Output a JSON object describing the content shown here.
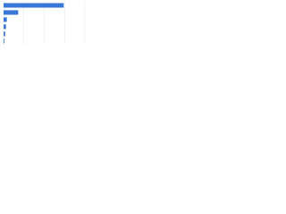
{
  "chart_data": {
    "type": "bar",
    "orientation": "horizontal",
    "categories": [
      null,
      null,
      null,
      null,
      null,
      null
    ],
    "values": [
      74,
      18,
      4,
      3,
      2,
      1
    ],
    "color": "#3a78d8",
    "xlim": [
      0,
      100
    ],
    "xticks": [
      0,
      25,
      50,
      75,
      100
    ],
    "grid": true
  }
}
